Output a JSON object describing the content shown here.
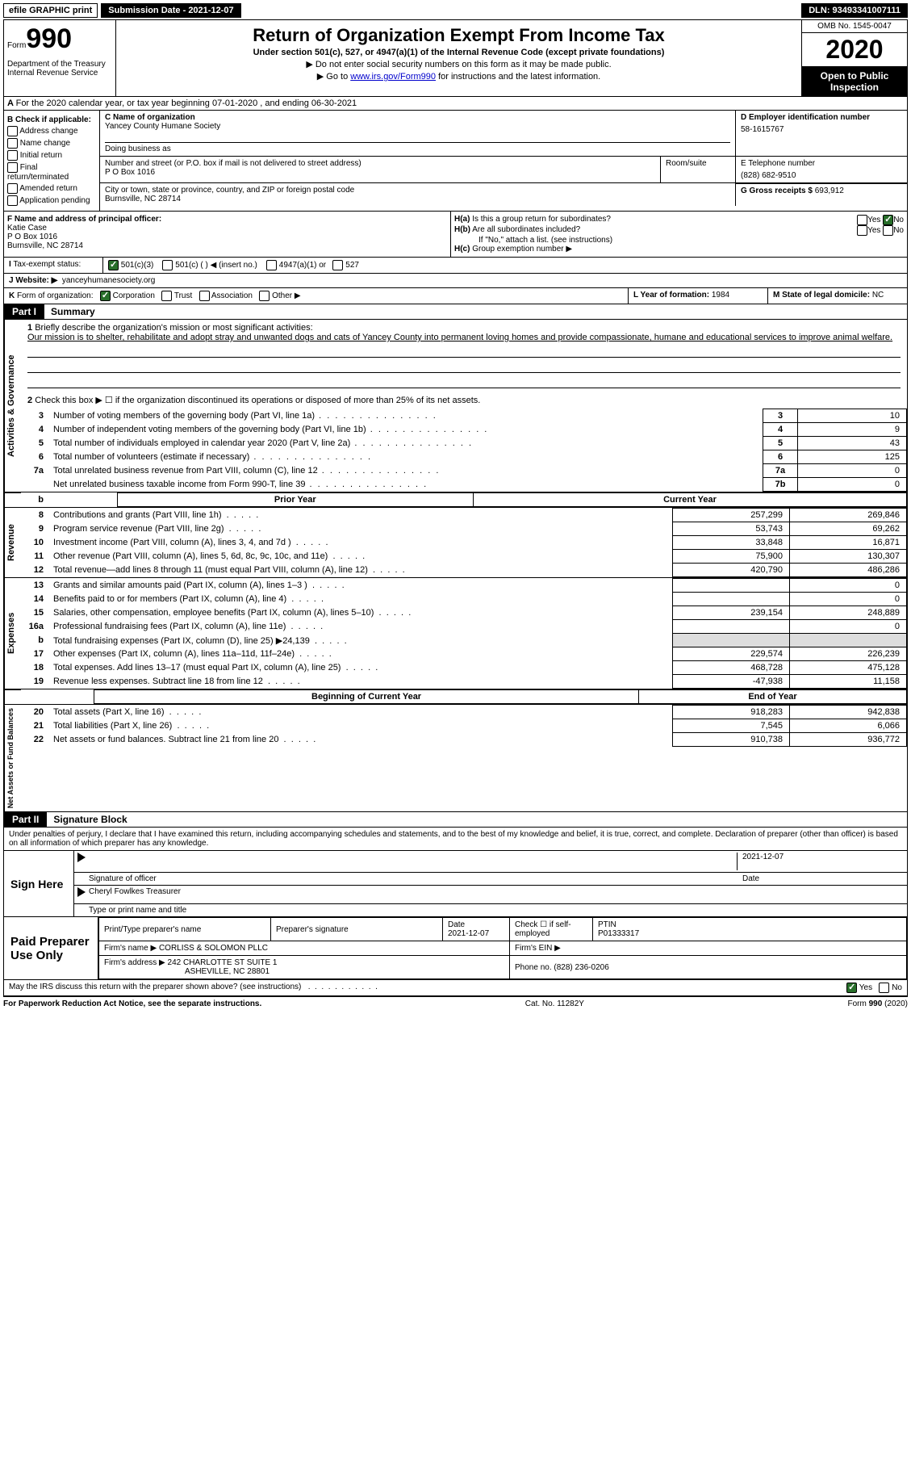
{
  "topbar": {
    "efile": "efile GRAPHIC print",
    "submission": "Submission Date - 2021-12-07",
    "dln": "DLN: 93493341007111"
  },
  "header": {
    "form_word": "Form",
    "form_num": "990",
    "dept": "Department of the Treasury\nInternal Revenue Service",
    "title": "Return of Organization Exempt From Income Tax",
    "subtitle": "Under section 501(c), 527, or 4947(a)(1) of the Internal Revenue Code (except private foundations)",
    "line1": "▶ Do not enter social security numbers on this form as it may be made public.",
    "line2_pre": "▶ Go to ",
    "line2_link": "www.irs.gov/Form990",
    "line2_post": " for instructions and the latest information.",
    "omb": "OMB No. 1545-0047",
    "year": "2020",
    "open": "Open to Public Inspection"
  },
  "sectionA": "For the 2020 calendar year, or tax year beginning 07-01-2020   , and ending 06-30-2021",
  "sectionB": {
    "title": "B Check if applicable:",
    "opts": [
      "Address change",
      "Name change",
      "Initial return",
      "Final return/terminated",
      "Amended return",
      "Application pending"
    ]
  },
  "sectionC": {
    "label": "C Name of organization",
    "org": "Yancey County Humane Society",
    "dba_label": "Doing business as",
    "addr_label": "Number and street (or P.O. box if mail is not delivered to street address)",
    "room_label": "Room/suite",
    "addr": "P O Box 1016",
    "city_label": "City or town, state or province, country, and ZIP or foreign postal code",
    "city": "Burnsville, NC  28714"
  },
  "sectionD": {
    "label": "D Employer identification number",
    "ein": "58-1615767"
  },
  "sectionE": {
    "label": "E Telephone number",
    "phone": "(828) 682-9510"
  },
  "sectionG": {
    "label": "G Gross receipts $ ",
    "val": "693,912"
  },
  "sectionF": {
    "label": "F Name and address of principal officer:",
    "name": "Katie Case",
    "addr1": "P O Box 1016",
    "addr2": "Burnsville, NC  28714"
  },
  "sectionH": {
    "ha": "Is this a group return for subordinates?",
    "hb": "Are all subordinates included?",
    "hb_note": "If \"No,\" attach a list. (see instructions)",
    "hc": "Group exemption number ▶",
    "yes": "Yes",
    "no": "No"
  },
  "sectionI": {
    "label": "Tax-exempt status:",
    "opts": [
      "501(c)(3)",
      "501(c) (  ) ◀ (insert no.)",
      "4947(a)(1) or",
      "527"
    ]
  },
  "sectionJ": {
    "label": "Website: ▶",
    "val": "yanceyhumanesociety.org"
  },
  "sectionK": {
    "label": "Form of organization:",
    "opts": [
      "Corporation",
      "Trust",
      "Association",
      "Other ▶"
    ]
  },
  "sectionL": {
    "label": "L Year of formation: ",
    "val": "1984"
  },
  "sectionM": {
    "label": "M State of legal domicile: ",
    "val": "NC"
  },
  "part1": {
    "label": "Part I",
    "title": "Summary"
  },
  "summary": {
    "l1": "Briefly describe the organization's mission or most significant activities:",
    "mission": "Our mission is to shelter, rehabilitate and adopt stray and unwanted dogs and cats of Yancey County into permanent loving homes and provide compassionate, humane and educational services to improve animal welfare.",
    "l2": "Check this box ▶ ☐  if the organization discontinued its operations or disposed of more than 25% of its net assets.",
    "rows": [
      {
        "n": "3",
        "t": "Number of voting members of the governing body (Part VI, line 1a)",
        "box": "3",
        "v": "10"
      },
      {
        "n": "4",
        "t": "Number of independent voting members of the governing body (Part VI, line 1b)",
        "box": "4",
        "v": "9"
      },
      {
        "n": "5",
        "t": "Total number of individuals employed in calendar year 2020 (Part V, line 2a)",
        "box": "5",
        "v": "43"
      },
      {
        "n": "6",
        "t": "Total number of volunteers (estimate if necessary)",
        "box": "6",
        "v": "125"
      },
      {
        "n": "7a",
        "t": "Total unrelated business revenue from Part VIII, column (C), line 12",
        "box": "7a",
        "v": "0"
      },
      {
        "n": "",
        "t": "Net unrelated business taxable income from Form 990-T, line 39",
        "box": "7b",
        "v": "0"
      }
    ]
  },
  "fin_headers": {
    "prior": "Prior Year",
    "curr": "Current Year"
  },
  "revenue": {
    "label": "Revenue",
    "rows": [
      {
        "n": "8",
        "t": "Contributions and grants (Part VIII, line 1h)",
        "p": "257,299",
        "c": "269,846"
      },
      {
        "n": "9",
        "t": "Program service revenue (Part VIII, line 2g)",
        "p": "53,743",
        "c": "69,262"
      },
      {
        "n": "10",
        "t": "Investment income (Part VIII, column (A), lines 3, 4, and 7d )",
        "p": "33,848",
        "c": "16,871"
      },
      {
        "n": "11",
        "t": "Other revenue (Part VIII, column (A), lines 5, 6d, 8c, 9c, 10c, and 11e)",
        "p": "75,900",
        "c": "130,307"
      },
      {
        "n": "12",
        "t": "Total revenue—add lines 8 through 11 (must equal Part VIII, column (A), line 12)",
        "p": "420,790",
        "c": "486,286"
      }
    ]
  },
  "expenses": {
    "label": "Expenses",
    "rows": [
      {
        "n": "13",
        "t": "Grants and similar amounts paid (Part IX, column (A), lines 1–3 )",
        "p": "",
        "c": "0"
      },
      {
        "n": "14",
        "t": "Benefits paid to or for members (Part IX, column (A), line 4)",
        "p": "",
        "c": "0"
      },
      {
        "n": "15",
        "t": "Salaries, other compensation, employee benefits (Part IX, column (A), lines 5–10)",
        "p": "239,154",
        "c": "248,889"
      },
      {
        "n": "16a",
        "t": "Professional fundraising fees (Part IX, column (A), line 11e)",
        "p": "",
        "c": "0"
      },
      {
        "n": "b",
        "t": "Total fundraising expenses (Part IX, column (D), line 25) ▶24,139",
        "p": "shaded",
        "c": "shaded"
      },
      {
        "n": "17",
        "t": "Other expenses (Part IX, column (A), lines 11a–11d, 11f–24e)",
        "p": "229,574",
        "c": "226,239"
      },
      {
        "n": "18",
        "t": "Total expenses. Add lines 13–17 (must equal Part IX, column (A), line 25)",
        "p": "468,728",
        "c": "475,128"
      },
      {
        "n": "19",
        "t": "Revenue less expenses. Subtract line 18 from line 12",
        "p": "-47,938",
        "c": "11,158"
      }
    ]
  },
  "netassets_headers": {
    "begin": "Beginning of Current Year",
    "end": "End of Year"
  },
  "netassets": {
    "label": "Net Assets or Fund Balances",
    "rows": [
      {
        "n": "20",
        "t": "Total assets (Part X, line 16)",
        "p": "918,283",
        "c": "942,838"
      },
      {
        "n": "21",
        "t": "Total liabilities (Part X, line 26)",
        "p": "7,545",
        "c": "6,066"
      },
      {
        "n": "22",
        "t": "Net assets or fund balances. Subtract line 21 from line 20",
        "p": "910,738",
        "c": "936,772"
      }
    ]
  },
  "part2": {
    "label": "Part II",
    "title": "Signature Block"
  },
  "sig_decl": "Under penalties of perjury, I declare that I have examined this return, including accompanying schedules and statements, and to the best of my knowledge and belief, it is true, correct, and complete. Declaration of preparer (other than officer) is based on all information of which preparer has any knowledge.",
  "sign": {
    "here": "Sign Here",
    "officer": "Signature of officer",
    "date_label": "Date",
    "date": "2021-12-07",
    "name": "Cheryl Fowlkes  Treasurer",
    "name_label": "Type or print name and title"
  },
  "paid": {
    "title": "Paid Preparer Use Only",
    "h1": "Print/Type preparer's name",
    "h2": "Preparer's signature",
    "h3_label": "Date",
    "h3": "2021-12-07",
    "h4": "Check ☐ if self-employed",
    "h5_label": "PTIN",
    "h5": "P01333317",
    "firm_label": "Firm's name    ▶",
    "firm": "CORLISS & SOLOMON PLLC",
    "ein_label": "Firm's EIN ▶",
    "addr_label": "Firm's address ▶",
    "addr1": "242 CHARLOTTE ST SUITE 1",
    "addr2": "ASHEVILLE, NC  28801",
    "phone_label": "Phone no. ",
    "phone": "(828) 236-0206"
  },
  "discuss": "May the IRS discuss this return with the preparer shown above? (see instructions)",
  "footer": {
    "left": "For Paperwork Reduction Act Notice, see the separate instructions.",
    "mid": "Cat. No. 11282Y",
    "right": "Form 990 (2020)"
  }
}
